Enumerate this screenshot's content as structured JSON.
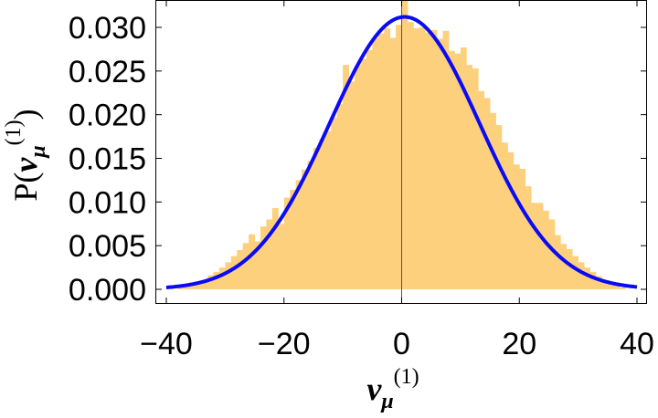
{
  "chart_data": {
    "type": "bar",
    "subtype": "histogram-with-fitted-curve",
    "title": "",
    "xlabel": {
      "base": "ν",
      "sub": "μ",
      "sup": "(1)"
    },
    "ylabel": {
      "prefix": "P(",
      "base": "ν",
      "sub": "μ",
      "sup": "(1)",
      "suffix": ")"
    },
    "xlim": [
      -40,
      40
    ],
    "ylim": [
      0,
      0.033
    ],
    "x_ticks": [
      -40,
      -20,
      0,
      20,
      40
    ],
    "x_tick_labels": [
      "−40",
      "−20",
      "0",
      "20",
      "40"
    ],
    "y_ticks": [
      0,
      0.005,
      0.01,
      0.015,
      0.02,
      0.025,
      0.03
    ],
    "y_tick_labels": [
      "0.000",
      "0.005",
      "0.010",
      "0.015",
      "0.020",
      "0.025",
      "0.030"
    ],
    "grid": false,
    "legend": "none",
    "colors": {
      "bars": "#fcd07d",
      "curve": "#0a0af5",
      "zero_line": "#555555",
      "frame": "#000000"
    },
    "histogram": {
      "bin_width": 1,
      "bin_start": -40,
      "values": [
        0,
        0,
        0.0002,
        0.0004,
        0.0006,
        0.0008,
        0.0011,
        0.0016,
        0.002,
        0.0025,
        0.0031,
        0.0038,
        0.0045,
        0.0053,
        0.0063,
        0.0055,
        0.0072,
        0.008,
        0.0093,
        0.0075,
        0.0105,
        0.0114,
        0.0125,
        0.0137,
        0.0147,
        0.0162,
        0.0172,
        0.0181,
        0.0197,
        0.0212,
        0.0257,
        0.0238,
        0.0256,
        0.0264,
        0.0274,
        0.0288,
        0.0293,
        0.0299,
        0.0288,
        0.0303,
        0.0332,
        0.0306,
        0.0299,
        0.03,
        0.0294,
        0.0297,
        0.0287,
        0.0296,
        0.0273,
        0.027,
        0.0277,
        0.0257,
        0.0253,
        0.0227,
        0.0219,
        0.0202,
        0.0188,
        0.0168,
        0.0157,
        0.0143,
        0.0138,
        0.0118,
        0.0099,
        0.0099,
        0.009,
        0.008,
        0.0062,
        0.0052,
        0.0046,
        0.0038,
        0.0031,
        0.0025,
        0.002,
        0.0015,
        0.001,
        0.0007,
        0.0004,
        0.0002,
        0,
        0
      ]
    },
    "fit_curve": {
      "type": "gaussian",
      "mean": 0.5,
      "sigma": 12.8,
      "peak": 0.0312,
      "x_range": [
        -40,
        40
      ]
    }
  }
}
